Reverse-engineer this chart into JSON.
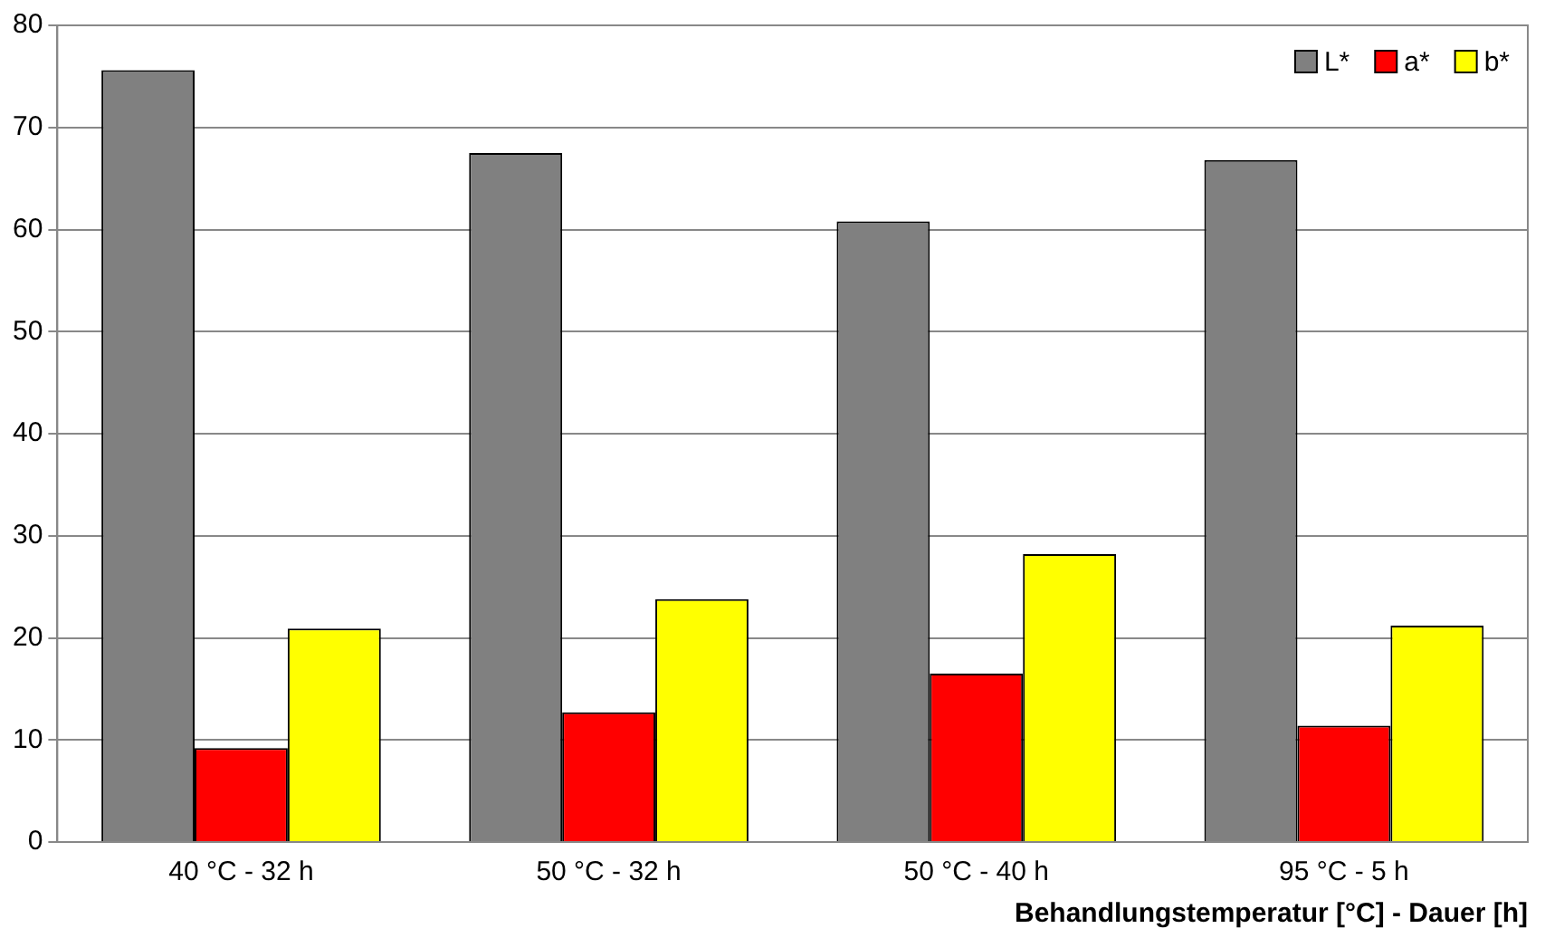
{
  "chart_data": {
    "type": "bar",
    "xlabel": "Behandlungstemperatur [°C] - Dauer [h]",
    "categories": [
      "40 °C - 32 h",
      "50 °C - 32 h",
      "50 °C - 40 h",
      "95 °C - 5 h"
    ],
    "series": [
      {
        "name": "L*",
        "color": "#808080",
        "values": [
          75.6,
          67.5,
          60.8,
          66.8
        ]
      },
      {
        "name": "a*",
        "color": "#ff0000",
        "values": [
          9.2,
          12.7,
          16.5,
          11.4
        ]
      },
      {
        "name": "b*",
        "color": "#ffff00",
        "values": [
          20.9,
          23.8,
          28.2,
          21.2
        ]
      }
    ],
    "ylim": [
      0,
      80
    ],
    "yticks": [
      0,
      10,
      20,
      30,
      40,
      50,
      60,
      70,
      80
    ],
    "grid": "y",
    "legend": "top right"
  }
}
